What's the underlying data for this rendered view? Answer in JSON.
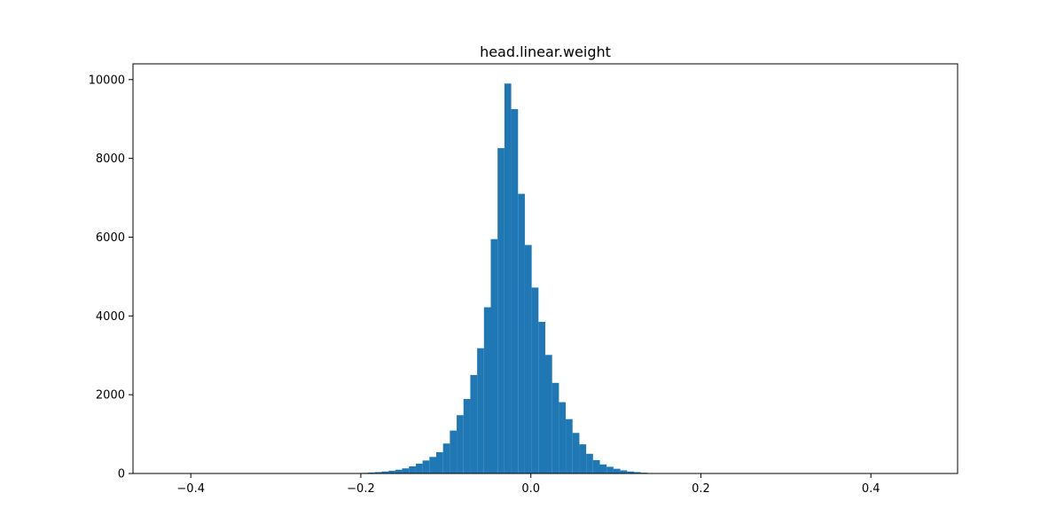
{
  "chart_data": {
    "type": "bar",
    "title": "head.linear.weight",
    "xlabel": "",
    "ylabel": "",
    "xlim": [
      -0.468,
      0.502
    ],
    "ylim": [
      0,
      10400
    ],
    "x_ticks": [
      {
        "value": -0.4,
        "label": "−0.4"
      },
      {
        "value": -0.2,
        "label": "−0.2"
      },
      {
        "value": 0.0,
        "label": "0.0"
      },
      {
        "value": 0.2,
        "label": "0.2"
      },
      {
        "value": 0.4,
        "label": "0.4"
      }
    ],
    "y_ticks": [
      {
        "value": 0,
        "label": "0"
      },
      {
        "value": 2000,
        "label": "2000"
      },
      {
        "value": 4000,
        "label": "4000"
      },
      {
        "value": 6000,
        "label": "6000"
      },
      {
        "value": 8000,
        "label": "8000"
      },
      {
        "value": 10000,
        "label": "10000"
      }
    ],
    "grid": false,
    "bar_color": "#1f77b4",
    "bin_range": [
      -0.424,
      0.458
    ],
    "bins": 110,
    "counts": [
      1,
      1,
      0,
      0,
      0,
      0,
      0,
      0,
      0,
      0,
      0,
      0,
      0,
      0,
      0,
      0,
      0,
      0,
      0,
      0,
      0,
      0,
      0,
      1,
      2,
      4,
      6,
      10,
      15,
      25,
      35,
      50,
      70,
      95,
      130,
      180,
      250,
      330,
      420,
      540,
      760,
      1090,
      1480,
      1890,
      2500,
      3180,
      4220,
      5950,
      8260,
      9900,
      9250,
      7100,
      5800,
      4720,
      3850,
      3010,
      2300,
      1810,
      1380,
      1030,
      740,
      500,
      340,
      230,
      170,
      120,
      80,
      50,
      35,
      20,
      12,
      8,
      4,
      2,
      1,
      0,
      0,
      0,
      0,
      0,
      0,
      0,
      0,
      0,
      0,
      0,
      0,
      0,
      0,
      0,
      0,
      0,
      0,
      0,
      0,
      0,
      0,
      0,
      0,
      0,
      0,
      0,
      0,
      0,
      0,
      0,
      0,
      0,
      0,
      1
    ]
  }
}
